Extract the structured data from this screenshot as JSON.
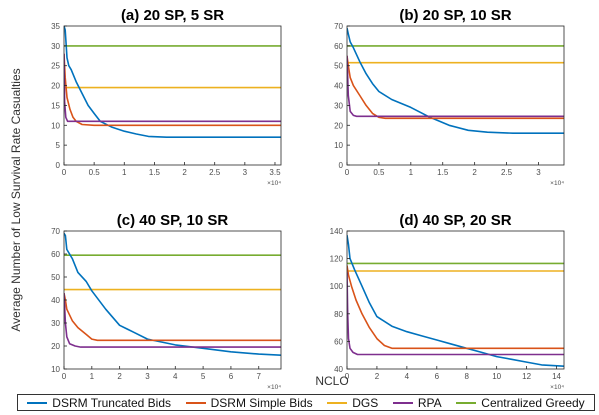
{
  "chart_data": {
    "type": "line",
    "ylabel": "Average Number of Low Survival Rate Casualties",
    "xlabel": "NCLO",
    "legend_position": "bottom",
    "series_colors": {
      "DSRM Truncated Bids": "#0072BD",
      "DSRM Simple Bids": "#D95319",
      "DGS": "#EDB120",
      "RPA": "#7E2F8E",
      "Centralized Greedy": "#77AC30"
    },
    "legend": [
      "DSRM Truncated Bids",
      "DSRM Simple Bids",
      "DGS",
      "RPA",
      "Centralized Greedy"
    ],
    "panels": [
      {
        "title": "(a) 20 SP, 5 SR",
        "x_multiplier": "×10⁴",
        "xlim": [
          0,
          3.6
        ],
        "ylim": [
          0,
          35
        ],
        "xticks": [
          "0",
          "0.5",
          "1",
          "1.5",
          "2",
          "2.5",
          "3",
          "3.5"
        ],
        "yticks": [
          "0",
          "5",
          "10",
          "15",
          "20",
          "25",
          "30",
          "35"
        ],
        "series": [
          {
            "name": "DSRM Truncated Bids",
            "x": [
              0,
              0.02,
              0.05,
              0.08,
              0.12,
              0.2,
              0.3,
              0.4,
              0.5,
              0.6,
              0.8,
              1.0,
              1.2,
              1.4,
              1.7,
              2.0,
              3.0,
              3.6
            ],
            "y": [
              35,
              34,
              27,
              25,
              24,
              21,
              18,
              15,
              13,
              11,
              9.5,
              8.5,
              7.8,
              7.2,
              7.0,
              7.0,
              7.0,
              7.0
            ]
          },
          {
            "name": "DSRM Simple Bids",
            "x": [
              0,
              0.02,
              0.05,
              0.1,
              0.15,
              0.2,
              0.3,
              0.5,
              3.6
            ],
            "y": [
              28,
              22,
              17,
              14,
              12,
              11,
              10.2,
              10,
              10
            ]
          },
          {
            "name": "DGS",
            "x": [
              0,
              3.6
            ],
            "y": [
              19.5,
              19.5
            ]
          },
          {
            "name": "RPA",
            "x": [
              0,
              0.01,
              0.03,
              0.06,
              0.1,
              3.6
            ],
            "y": [
              28,
              16,
              12,
              11,
              11,
              11
            ]
          },
          {
            "name": "Centralized Greedy",
            "x": [
              0,
              3.6
            ],
            "y": [
              30,
              30
            ]
          }
        ]
      },
      {
        "title": "(b) 20 SP, 10 SR",
        "x_multiplier": "×10⁴",
        "xlim": [
          0,
          3.4
        ],
        "ylim": [
          0,
          70
        ],
        "xticks": [
          "0",
          "0.5",
          "1",
          "1.5",
          "2",
          "2.5",
          "3"
        ],
        "yticks": [
          "0",
          "10",
          "20",
          "30",
          "40",
          "50",
          "60",
          "70"
        ],
        "series": [
          {
            "name": "DSRM Truncated Bids",
            "x": [
              0,
              0.02,
              0.05,
              0.1,
              0.2,
              0.3,
              0.4,
              0.5,
              0.7,
              1.0,
              1.3,
              1.6,
              1.9,
              2.2,
              2.6,
              3.0,
              3.4
            ],
            "y": [
              69,
              66,
              62,
              59,
              52,
              46,
              41,
              37,
              33,
              29,
              24,
              20,
              17.5,
              16.5,
              16,
              16,
              16
            ]
          },
          {
            "name": "DSRM Simple Bids",
            "x": [
              0,
              0.02,
              0.05,
              0.1,
              0.2,
              0.3,
              0.4,
              0.5,
              0.6,
              3.4
            ],
            "y": [
              55,
              50,
              44,
              40,
              35,
              30,
              26,
              24,
              23.5,
              23.5
            ]
          },
          {
            "name": "DGS",
            "x": [
              0,
              3.4
            ],
            "y": [
              51.5,
              51.5
            ]
          },
          {
            "name": "RPA",
            "x": [
              0,
              0.02,
              0.05,
              0.1,
              0.15,
              3.4
            ],
            "y": [
              55,
              35,
              27,
              25,
              24.5,
              24.5
            ]
          },
          {
            "name": "Centralized Greedy",
            "x": [
              0,
              3.4
            ],
            "y": [
              60,
              60
            ]
          }
        ]
      },
      {
        "title": "(c) 40 SP, 10 SR",
        "x_multiplier": "×10⁴",
        "xlim": [
          0,
          7.8
        ],
        "ylim": [
          10,
          70
        ],
        "xticks": [
          "0",
          "1",
          "2",
          "3",
          "4",
          "5",
          "6",
          "7"
        ],
        "yticks": [
          "10",
          "20",
          "30",
          "40",
          "50",
          "60",
          "70"
        ],
        "series": [
          {
            "name": "DSRM Truncated Bids",
            "x": [
              0,
              0.05,
              0.1,
              0.3,
              0.5,
              0.8,
              1.0,
              1.5,
              2.0,
              2.5,
              3.0,
              4.0,
              5.0,
              6.0,
              7.0,
              7.8
            ],
            "y": [
              69,
              68,
              62,
              58,
              52,
              48,
              44,
              36,
              29,
              26,
              23,
              20.5,
              19,
              17.5,
              16.5,
              16
            ]
          },
          {
            "name": "DSRM Simple Bids",
            "x": [
              0,
              0.05,
              0.1,
              0.3,
              0.5,
              0.8,
              1.0,
              1.2,
              1.5,
              7.8
            ],
            "y": [
              43,
              40,
              36,
              31,
              28,
              25,
              23,
              22.5,
              22.5,
              22.5
            ]
          },
          {
            "name": "DGS",
            "x": [
              0,
              7.8
            ],
            "y": [
              44.5,
              44.5
            ]
          },
          {
            "name": "RPA",
            "x": [
              0,
              0.05,
              0.1,
              0.2,
              0.4,
              0.6,
              7.8
            ],
            "y": [
              43,
              30,
              24,
              21,
              20,
              19.5,
              19.5
            ]
          },
          {
            "name": "Centralized Greedy",
            "x": [
              0,
              7.8
            ],
            "y": [
              59.5,
              59.5
            ]
          }
        ]
      },
      {
        "title": "(d) 40 SP, 20 SR",
        "x_multiplier": "×10⁴",
        "xlim": [
          0,
          14.5
        ],
        "ylim": [
          40,
          140
        ],
        "xticks": [
          "0",
          "2",
          "4",
          "6",
          "8",
          "10",
          "12",
          "14"
        ],
        "yticks": [
          "40",
          "60",
          "80",
          "100",
          "120",
          "140"
        ],
        "series": [
          {
            "name": "DSRM Truncated Bids",
            "x": [
              0,
              0.1,
              0.2,
              0.5,
              1.0,
              1.5,
              2.0,
              3.0,
              4.0,
              5.0,
              6.0,
              7.0,
              8.0,
              9.0,
              10.0,
              11.0,
              12.0,
              13.0,
              14.5
            ],
            "y": [
              137,
              130,
              120,
              112,
              100,
              88,
              78,
              71,
              67,
              64,
              61,
              58,
              55,
              52,
              49,
              47,
              45,
              43,
              42
            ]
          },
          {
            "name": "DSRM Simple Bids",
            "x": [
              0,
              0.1,
              0.3,
              0.6,
              1.0,
              1.5,
              2.0,
              2.5,
              3.0,
              14.5
            ],
            "y": [
              115,
              108,
              100,
              90,
              80,
              70,
              62,
              57,
              55,
              55
            ]
          },
          {
            "name": "DGS",
            "x": [
              0,
              14.5
            ],
            "y": [
              111,
              111
            ]
          },
          {
            "name": "RPA",
            "x": [
              0,
              0.05,
              0.1,
              0.2,
              0.4,
              0.7,
              14.5
            ],
            "y": [
              110,
              80,
              62,
              55,
              52,
              50.5,
              50.5
            ]
          },
          {
            "name": "Centralized Greedy",
            "x": [
              0,
              14.5
            ],
            "y": [
              116.5,
              116.5
            ]
          }
        ]
      }
    ]
  }
}
